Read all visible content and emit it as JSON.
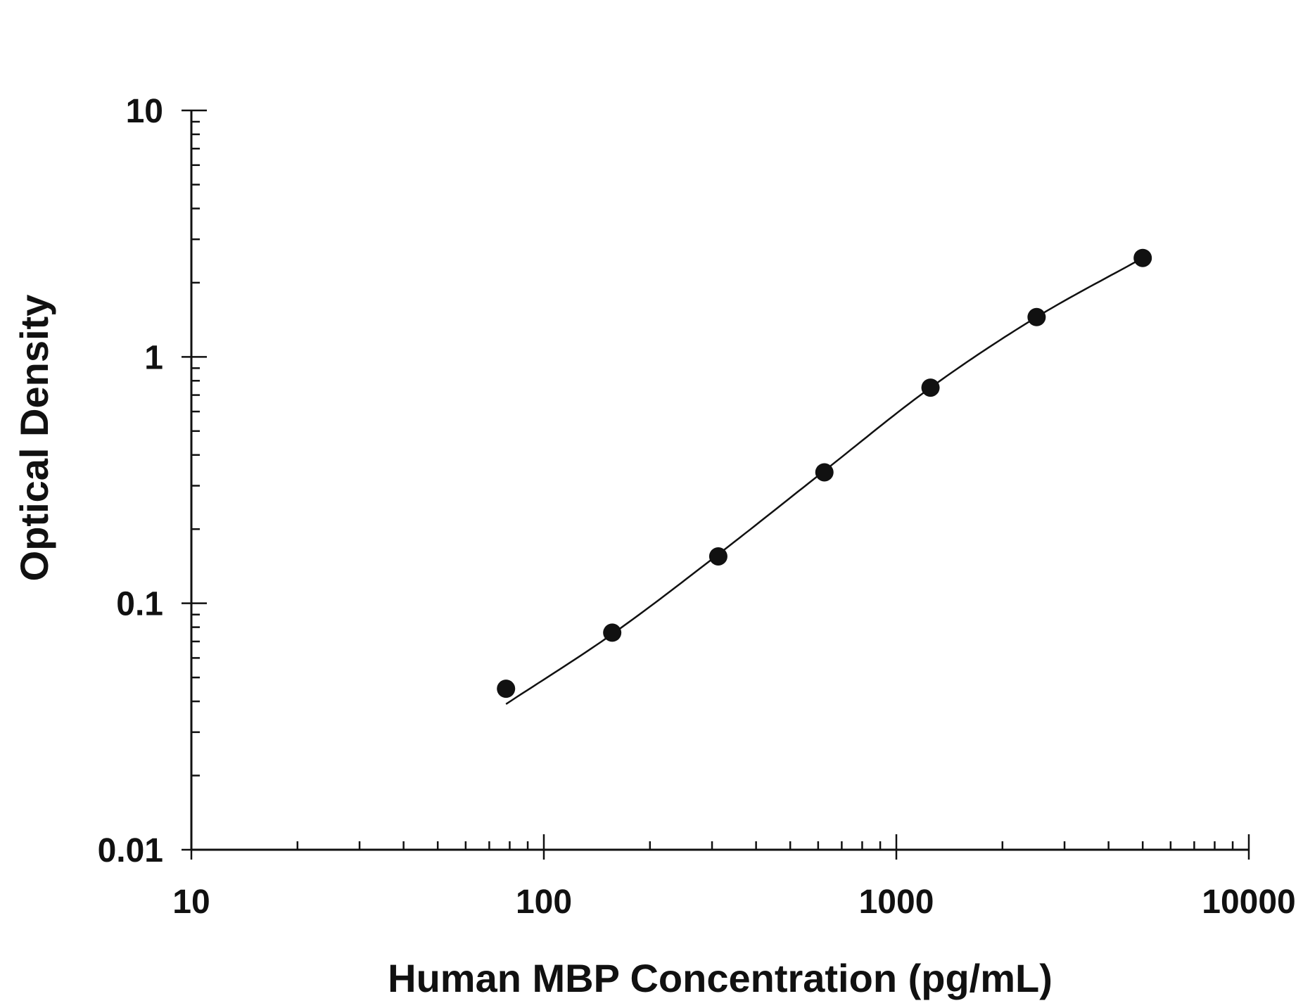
{
  "chart_data": {
    "type": "scatter",
    "title": "",
    "xlabel": "Human MBP Concentration (pg/mL)",
    "ylabel": "Optical Density",
    "x_scale": "log",
    "y_scale": "log",
    "xlim": [
      10,
      10000
    ],
    "ylim": [
      0.01,
      10
    ],
    "x_ticks": [
      10,
      100,
      1000,
      10000
    ],
    "x_tick_labels": [
      "10",
      "100",
      "1000",
      "10000"
    ],
    "y_ticks": [
      0.01,
      0.1,
      1,
      10
    ],
    "y_tick_labels": [
      "0.01",
      "0.1",
      "1",
      "10"
    ],
    "grid": false,
    "legend": "none",
    "series": [
      {
        "x": [
          78.1,
          156.3,
          312.5,
          625,
          1250,
          2500,
          5000
        ],
        "y": [
          0.045,
          0.076,
          0.155,
          0.34,
          0.75,
          1.45,
          2.52
        ]
      }
    ],
    "fit_curve": {
      "x": [
        78.1,
        156.3,
        312.5,
        625,
        1250,
        2500,
        5000
      ],
      "y": [
        0.039,
        0.075,
        0.158,
        0.345,
        0.75,
        1.45,
        2.52
      ]
    }
  }
}
